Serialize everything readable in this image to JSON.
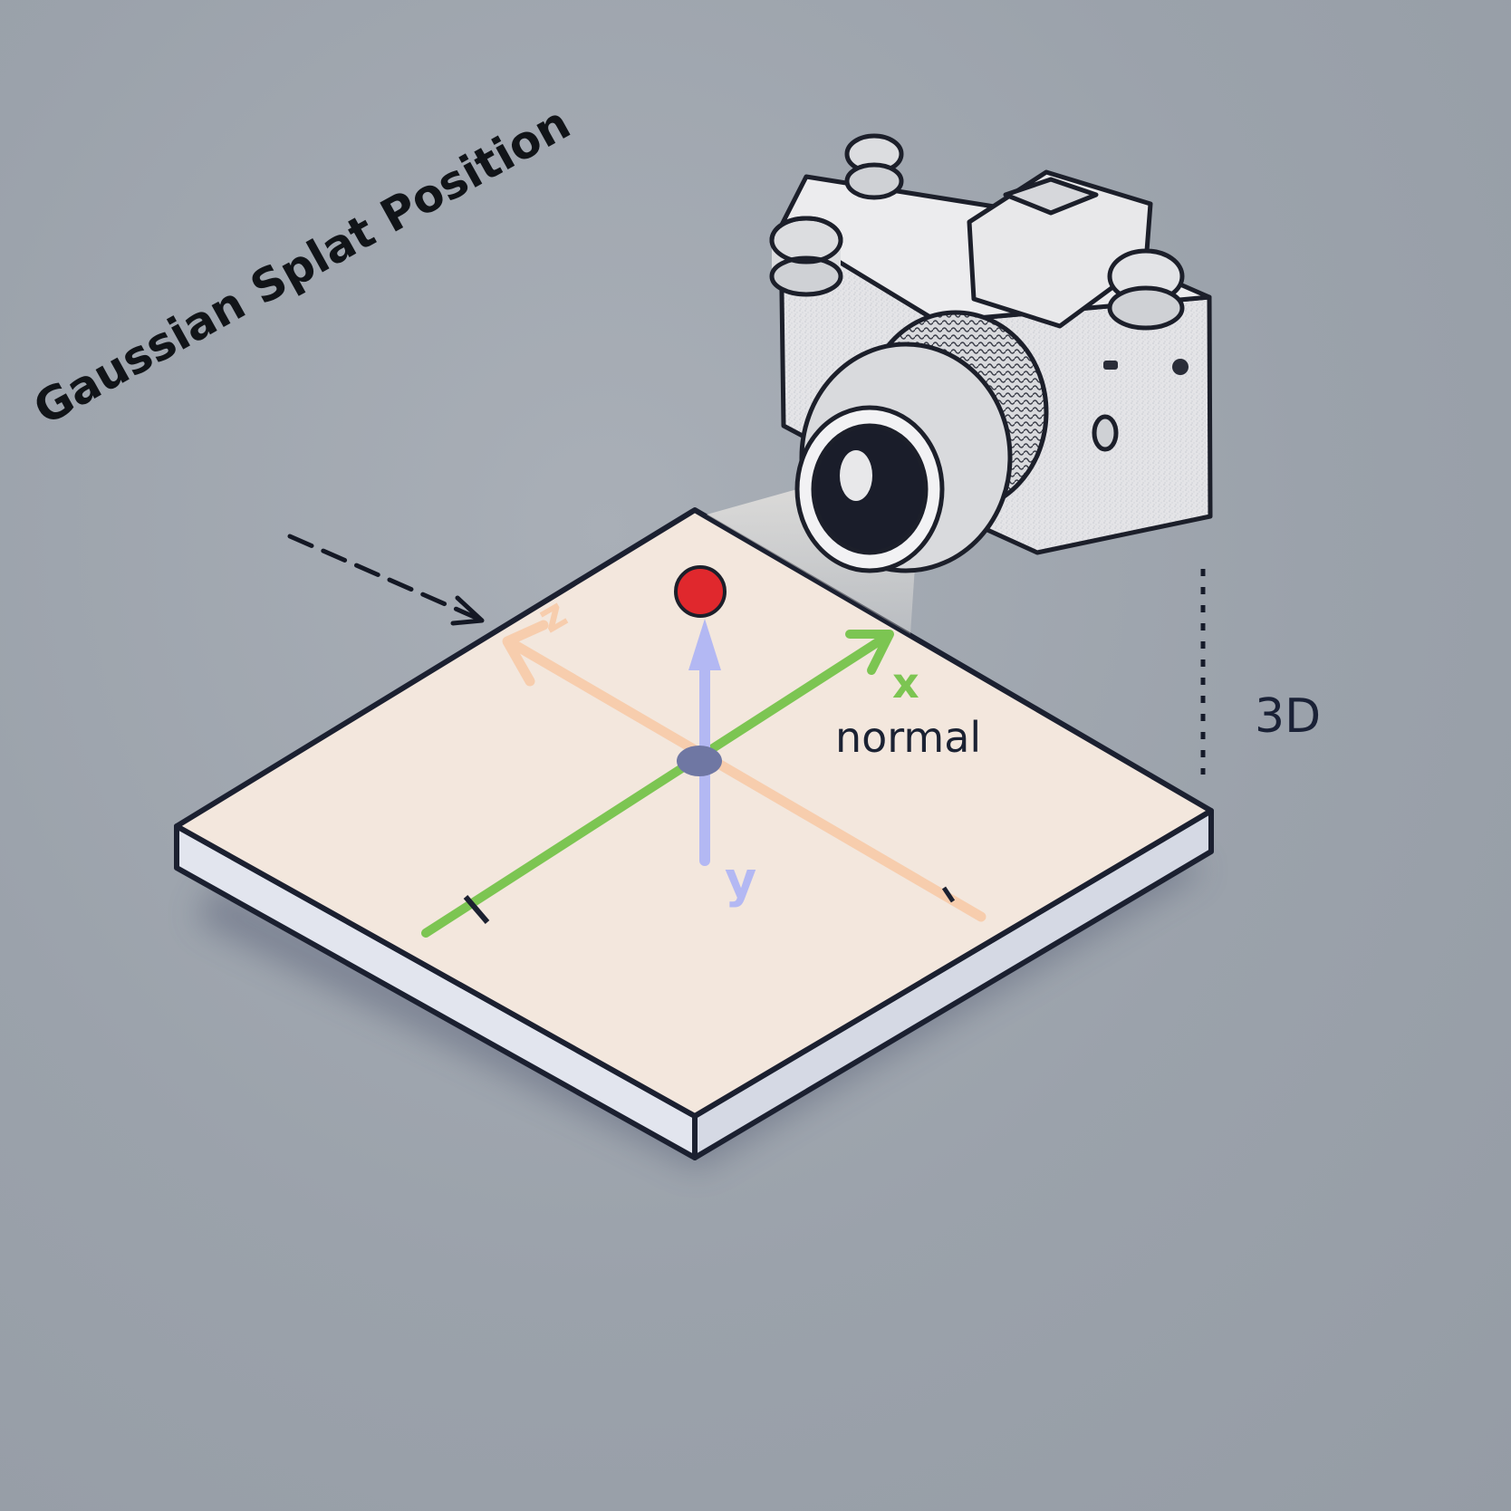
{
  "title": "Gaussian Splat Position",
  "labels": {
    "normal": "normal",
    "dimension": "3D"
  },
  "axes": {
    "x_letter": "x",
    "y_letter": "y",
    "z_letter": "z",
    "x_color": "#7cc552",
    "y_color": "#b3b8f3",
    "z_color": "#f7cdad"
  },
  "colors": {
    "background": "#9aa1aa",
    "plane_top": "#f3e7dd",
    "plane_edge": "#dfe2ea",
    "splat_point": "#e0282d",
    "origin": "#6f77a3",
    "camera_body": "#e6e6e8",
    "camera_outline": "#1c1f2a"
  },
  "icons": {
    "camera": "camera-icon",
    "pointer_arrow": "arrow-icon"
  }
}
